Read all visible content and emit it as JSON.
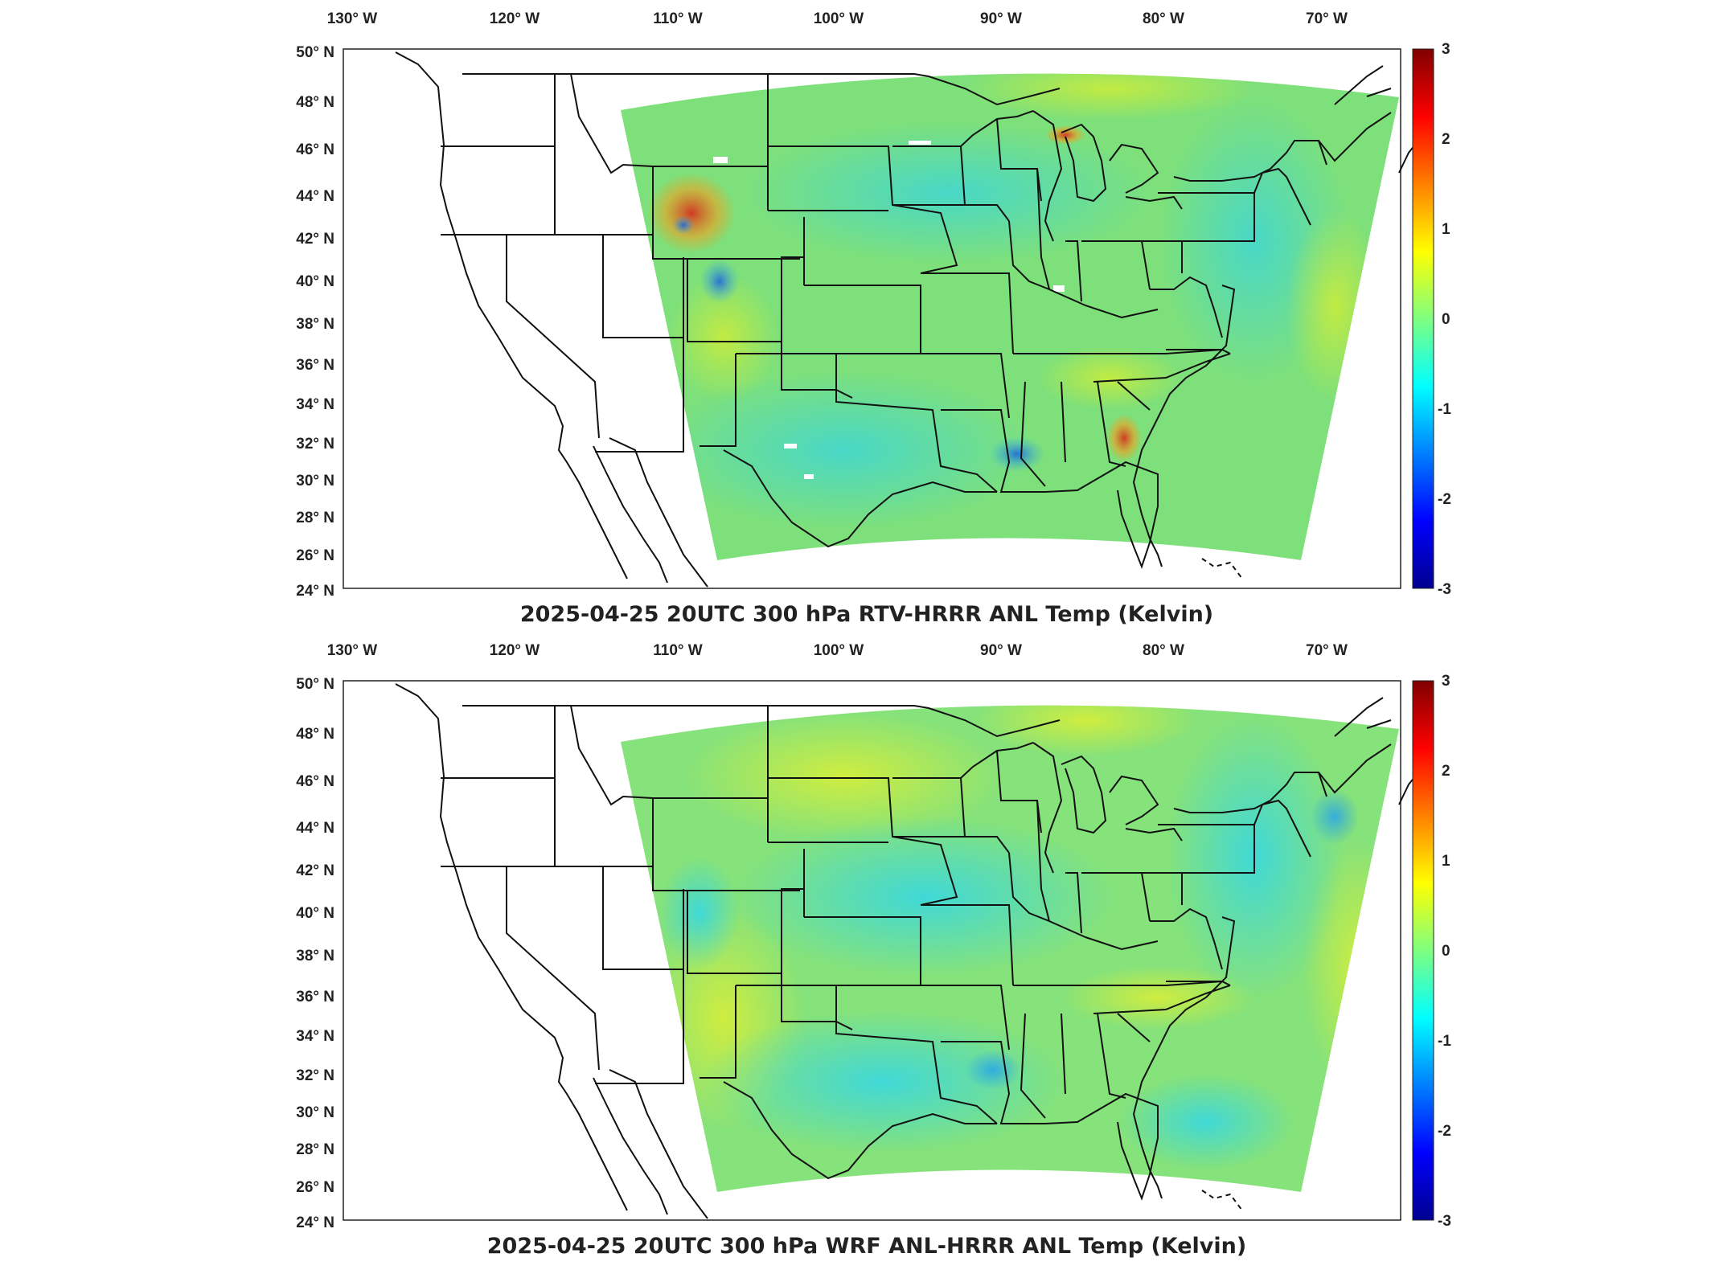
{
  "panels": [
    {
      "title": "2025-04-25 20UTC 300 hPa RTV-HRRR ANL Temp (Kelvin)",
      "variant": "rtv"
    },
    {
      "title": "2025-04-25 20UTC 300 hPa WRF ANL-HRRR ANL Temp (Kelvin)",
      "variant": "wrf"
    }
  ],
  "axes": {
    "lon_ticks": [
      "130° W",
      "120° W",
      "110° W",
      "100° W",
      "90° W",
      "80° W",
      "70° W"
    ],
    "lat_ticks": [
      "50° N",
      "48° N",
      "46° N",
      "44° N",
      "42° N",
      "40° N",
      "38° N",
      "36° N",
      "34° N",
      "32° N",
      "30° N",
      "28° N",
      "26° N",
      "24° N"
    ]
  },
  "colorbar": {
    "ticks": [
      "3",
      "2",
      "1",
      "0",
      "-1",
      "-2",
      "-3"
    ],
    "range": [
      -3,
      3
    ],
    "colormap": "jet"
  },
  "colors": {
    "field_base": "#7ee07a",
    "field_cool": "#3ad3d8",
    "field_warm": "#c8ea3e",
    "hot": "#e8452a",
    "cold": "#1a6bd8"
  }
}
